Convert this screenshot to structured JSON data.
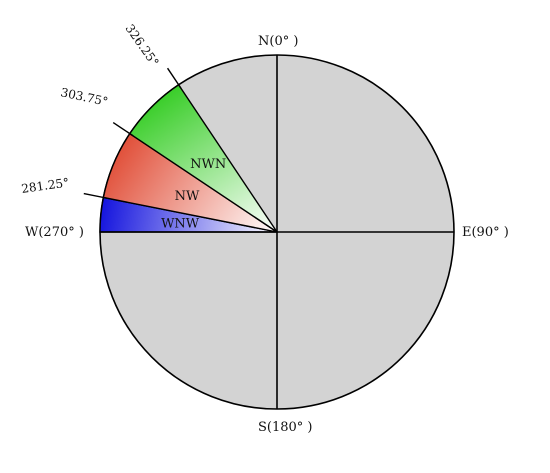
{
  "colors": {
    "disc": "#d3d3d3",
    "outline": "#000000",
    "wnw": "#1111dd",
    "nw": "#e04a33",
    "nwn": "#33cc22"
  },
  "directions": {
    "north": "N(0° )",
    "east": "E(90° )",
    "south": "S(180° )",
    "west": "W(270° )"
  },
  "sector_boundaries": [
    {
      "bearing": 281.25,
      "label": "281.25°"
    },
    {
      "bearing": 303.75,
      "label": "303.75°"
    },
    {
      "bearing": 326.25,
      "label": "326.25°"
    }
  ],
  "sectors": [
    {
      "name": "WNW",
      "from": 270,
      "to": 281.25,
      "color": "#1111dd"
    },
    {
      "name": "NW",
      "from": 281.25,
      "to": 303.75,
      "color": "#e04a33"
    },
    {
      "name": "NWN",
      "from": 303.75,
      "to": 326.25,
      "color": "#33cc22"
    }
  ]
}
